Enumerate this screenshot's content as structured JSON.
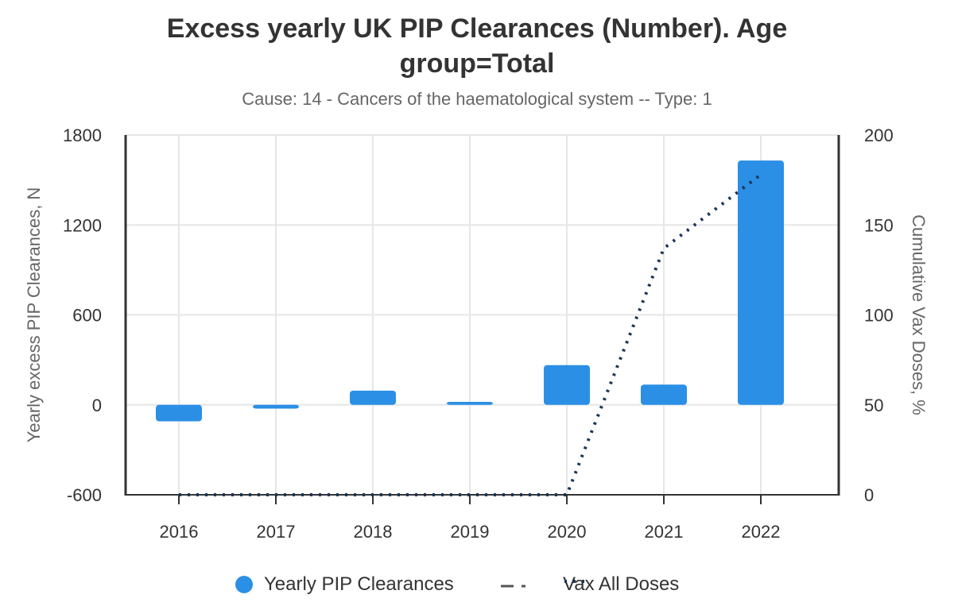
{
  "title_line1": "Excess yearly UK PIP Clearances (Number). Age",
  "title_line2": "group=Total",
  "subtitle": "Cause: 14 - Cancers of the haematological system -- Type: 1",
  "colors": {
    "bar": "#2b8fe6",
    "vax_line": "#1c3557",
    "grid": "#e6e6e6",
    "axis": "#333333"
  },
  "chart_data": {
    "type": "bar",
    "title": "Excess yearly UK PIP Clearances (Number). Age group=Total",
    "subtitle": "Cause: 14 - Cancers of the haematological system -- Type: 1",
    "categories": [
      "2016",
      "2017",
      "2018",
      "2019",
      "2020",
      "2021",
      "2022"
    ],
    "series": [
      {
        "name": "Yearly PIP Clearances",
        "type": "bar",
        "axis": "left",
        "values": [
          -110,
          -25,
          95,
          20,
          265,
          135,
          1630
        ]
      },
      {
        "name": "Vax All Doses",
        "type": "line",
        "style": "dotted",
        "axis": "right",
        "values": [
          0,
          0,
          0,
          0,
          0,
          137,
          178
        ]
      }
    ],
    "ylabel": "Yearly excess PIP Clearances, N",
    "ylim": [
      -600,
      1800
    ],
    "yticks": [
      "1800",
      "1200",
      "600",
      "0",
      "-600"
    ],
    "y2label": "Cumulative Vax Doses, %",
    "y2lim": [
      0,
      200
    ],
    "y2ticks": [
      "200",
      "150",
      "100",
      "50",
      "0"
    ],
    "grid": true,
    "legend_position": "bottom",
    "legend": [
      "Yearly PIP Clearances",
      "",
      "Vax All Doses"
    ]
  }
}
